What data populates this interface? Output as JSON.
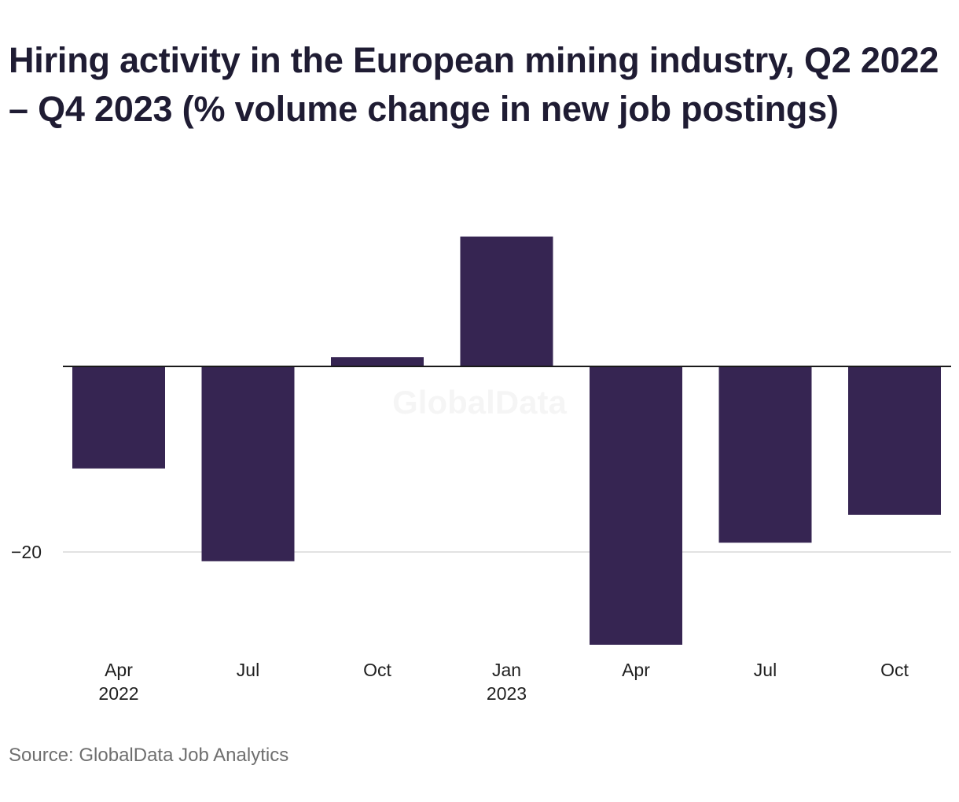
{
  "title": "Hiring activity in the European mining industry, Q2 2022 – Q4 2023 (% volume change in new job postings)",
  "source": "Source: GlobalData Job Analytics",
  "watermark": "GlobalData",
  "colors": {
    "bar": "#362552",
    "zero_line": "#1a1a1a",
    "grid": "#d9d9d9"
  },
  "chart_data": {
    "type": "bar",
    "title": "Hiring activity in the European mining industry, Q2 2022 – Q4 2023 (% volume change in new job postings)",
    "xlabel": "",
    "ylabel": "",
    "categories": [
      "Apr 2022",
      "Jul 2022",
      "Oct 2022",
      "Jan 2023",
      "Apr 2023",
      "Jul 2023",
      "Oct 2023"
    ],
    "tick_labels": [
      {
        "line1": "Apr",
        "line2": "2022"
      },
      {
        "line1": "Jul",
        "line2": ""
      },
      {
        "line1": "Oct",
        "line2": ""
      },
      {
        "line1": "Jan",
        "line2": "2023"
      },
      {
        "line1": "Apr",
        "line2": ""
      },
      {
        "line1": "Jul",
        "line2": ""
      },
      {
        "line1": "Oct",
        "line2": ""
      }
    ],
    "values": [
      -11,
      -21,
      1,
      14,
      -30,
      -19,
      -16
    ],
    "y_ticks": [
      {
        "value": -20,
        "label": "−20"
      }
    ],
    "ylim": [
      -30,
      14
    ],
    "grid": true,
    "legend": "none"
  }
}
